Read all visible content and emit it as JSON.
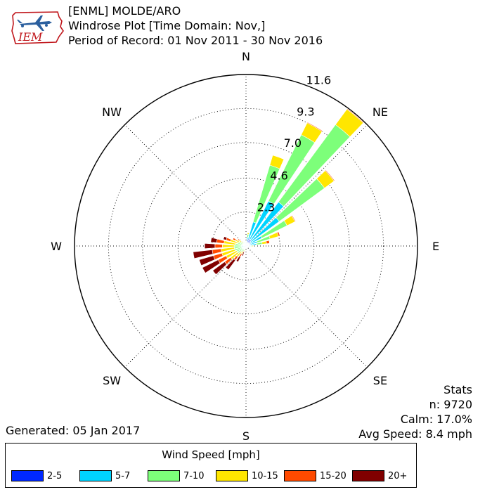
{
  "header": {
    "line1": "[ENML] MOLDE/ARO",
    "line2": "Windrose Plot [Time Domain: Nov,]",
    "line3": "Period of Record: 01 Nov 2011 - 30 Nov 2016"
  },
  "logo": {
    "text": "IEM"
  },
  "stats": {
    "title": "Stats",
    "n": "n: 9720",
    "calm": "Calm: 17.0%",
    "avg": "Avg Speed: 8.4 mph"
  },
  "generated": "Generated: 05 Jan 2017",
  "chart_data": {
    "type": "windrose",
    "directions": [
      "N",
      "NE",
      "E",
      "SE",
      "S",
      "SW",
      "W",
      "NW"
    ],
    "ring_labels": [
      "2.3",
      "4.6",
      "7.0",
      "9.3",
      "11.6"
    ],
    "rmax": 11.6,
    "legend_title": "Wind Speed [mph]",
    "bins": [
      {
        "name": "2-5",
        "color": "#0028ff"
      },
      {
        "name": "5-7",
        "color": "#00d4ff"
      },
      {
        "name": "7-10",
        "color": "#7dff7a"
      },
      {
        "name": "10-15",
        "color": "#ffe600"
      },
      {
        "name": "15-20",
        "color": "#ff4a00"
      },
      {
        "name": "20+",
        "color": "#800000"
      }
    ],
    "sectors": [
      {
        "dir": 0,
        "values": [
          0.1,
          0.1,
          0.1,
          0,
          0,
          0
        ]
      },
      {
        "dir": 10,
        "values": [
          0.3,
          0.3,
          0.2,
          0.1,
          0,
          0
        ]
      },
      {
        "dir": 20,
        "values": [
          0.5,
          1.2,
          4.0,
          0.7,
          0,
          0
        ]
      },
      {
        "dir": 30,
        "values": [
          0.5,
          2.9,
          5.0,
          0.9,
          0.05,
          0
        ]
      },
      {
        "dir": 40,
        "values": [
          0.5,
          3.2,
          6.5,
          1.3,
          0.05,
          0
        ]
      },
      {
        "dir": 50,
        "values": [
          0.4,
          2.4,
          3.8,
          0.8,
          0.05,
          0
        ]
      },
      {
        "dir": 60,
        "values": [
          0.3,
          0.9,
          1.9,
          0.6,
          0.05,
          0
        ]
      },
      {
        "dir": 70,
        "values": [
          0.3,
          0.5,
          0.9,
          0.6,
          0.1,
          0
        ]
      },
      {
        "dir": 80,
        "values": [
          0.3,
          0.4,
          0.4,
          0.3,
          0.2,
          0
        ]
      },
      {
        "dir": 90,
        "values": [
          0.2,
          0.1,
          0.1,
          0.1,
          0,
          0
        ]
      },
      {
        "dir": 100,
        "values": [
          0.1,
          0.1,
          0,
          0,
          0,
          0
        ]
      },
      {
        "dir": 110,
        "values": [
          0.1,
          0.1,
          0,
          0,
          0,
          0
        ]
      },
      {
        "dir": 120,
        "values": [
          0.1,
          0,
          0,
          0,
          0,
          0
        ]
      },
      {
        "dir": 130,
        "values": [
          0.1,
          0,
          0,
          0,
          0,
          0
        ]
      },
      {
        "dir": 140,
        "values": [
          0.1,
          0,
          0,
          0,
          0,
          0
        ]
      },
      {
        "dir": 150,
        "values": [
          0.1,
          0,
          0,
          0,
          0,
          0
        ]
      },
      {
        "dir": 160,
        "values": [
          0.1,
          0,
          0,
          0,
          0,
          0
        ]
      },
      {
        "dir": 170,
        "values": [
          0.1,
          0,
          0,
          0,
          0,
          0
        ]
      },
      {
        "dir": 180,
        "values": [
          0.1,
          0,
          0,
          0,
          0,
          0
        ]
      },
      {
        "dir": 190,
        "values": [
          0.1,
          0,
          0,
          0,
          0,
          0
        ]
      },
      {
        "dir": 200,
        "values": [
          0.1,
          0.1,
          0.1,
          0.1,
          0,
          0.3
        ]
      },
      {
        "dir": 210,
        "values": [
          0.1,
          0.1,
          0.2,
          0.2,
          0.2,
          0.4
        ]
      },
      {
        "dir": 220,
        "values": [
          0.1,
          0.1,
          0.3,
          0.4,
          0.3,
          0.8
        ]
      },
      {
        "dir": 230,
        "values": [
          0.1,
          0.2,
          0.4,
          0.6,
          0.5,
          1.0
        ]
      },
      {
        "dir": 240,
        "values": [
          0.1,
          0.2,
          0.4,
          0.8,
          0.6,
          1.2
        ]
      },
      {
        "dir": 250,
        "values": [
          0.1,
          0.2,
          0.5,
          0.9,
          0.6,
          1.0
        ]
      },
      {
        "dir": 260,
        "values": [
          0.1,
          0.2,
          0.5,
          0.9,
          0.6,
          1.3
        ]
      },
      {
        "dir": 270,
        "values": [
          0.1,
          0.2,
          0.5,
          0.8,
          0.5,
          0.7
        ]
      },
      {
        "dir": 280,
        "values": [
          0.1,
          0.2,
          0.4,
          0.8,
          0.5,
          0.4
        ]
      },
      {
        "dir": 290,
        "values": [
          0.1,
          0.1,
          0.4,
          0.5,
          0.3,
          0.2
        ]
      },
      {
        "dir": 300,
        "values": [
          0.1,
          0.1,
          0.3,
          0.3,
          0.2,
          0
        ]
      },
      {
        "dir": 310,
        "values": [
          0.1,
          0.1,
          0.2,
          0.2,
          0.1,
          0
        ]
      },
      {
        "dir": 320,
        "values": [
          0.1,
          0.1,
          0.1,
          0.1,
          0,
          0
        ]
      },
      {
        "dir": 330,
        "values": [
          0.1,
          0.1,
          0.1,
          0,
          0,
          0
        ]
      },
      {
        "dir": 340,
        "values": [
          0.1,
          0.1,
          0,
          0,
          0,
          0
        ]
      },
      {
        "dir": 350,
        "values": [
          0.1,
          0.1,
          0.1,
          0,
          0,
          0
        ]
      }
    ]
  }
}
